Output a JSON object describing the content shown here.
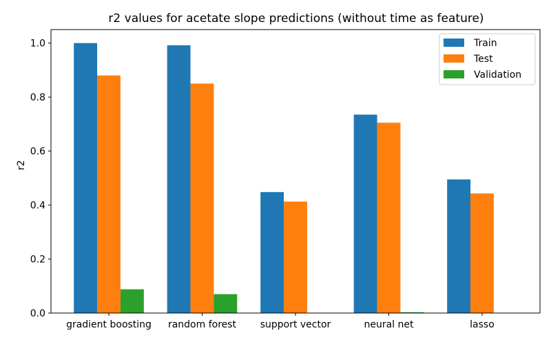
{
  "chart_data": {
    "type": "bar",
    "title": "r2 values for acetate slope predictions (without time as feature)",
    "xlabel": "",
    "ylabel": "r2",
    "categories": [
      "gradient boosting",
      "random forest",
      "support vector",
      "neural net",
      "lasso"
    ],
    "series": [
      {
        "name": "Train",
        "color": "#1f77b4",
        "values": [
          1.0,
          0.992,
          0.448,
          0.735,
          0.495
        ]
      },
      {
        "name": "Test",
        "color": "#ff7f0e",
        "values": [
          0.88,
          0.85,
          0.413,
          0.705,
          0.443
        ]
      },
      {
        "name": "Validation",
        "color": "#2ca02c",
        "values": [
          0.088,
          0.07,
          0.0,
          0.003,
          0.0
        ]
      }
    ],
    "ylim": [
      0.0,
      1.05
    ],
    "yticks": [
      0.0,
      0.2,
      0.4,
      0.6,
      0.8,
      1.0
    ],
    "ytick_labels": [
      "0.0",
      "0.2",
      "0.4",
      "0.6",
      "0.8",
      "1.0"
    ],
    "grid": false,
    "legend_position": "top-right"
  }
}
